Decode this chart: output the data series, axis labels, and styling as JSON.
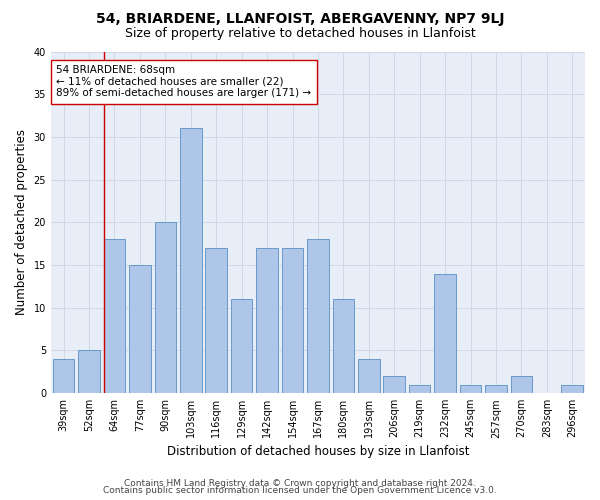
{
  "title": "54, BRIARDENE, LLANFOIST, ABERGAVENNY, NP7 9LJ",
  "subtitle": "Size of property relative to detached houses in Llanfoist",
  "xlabel": "Distribution of detached houses by size in Llanfoist",
  "ylabel": "Number of detached properties",
  "categories": [
    "39sqm",
    "52sqm",
    "64sqm",
    "77sqm",
    "90sqm",
    "103sqm",
    "116sqm",
    "129sqm",
    "142sqm",
    "154sqm",
    "167sqm",
    "180sqm",
    "193sqm",
    "206sqm",
    "219sqm",
    "232sqm",
    "245sqm",
    "257sqm",
    "270sqm",
    "283sqm",
    "296sqm"
  ],
  "values": [
    4,
    5,
    18,
    15,
    20,
    31,
    17,
    11,
    17,
    17,
    18,
    11,
    4,
    2,
    1,
    14,
    1,
    1,
    2,
    0,
    1
  ],
  "bar_color": "#aec6e8",
  "bar_edge_color": "#5a8fc2",
  "highlight_index": 2,
  "highlight_line_color": "#cc0000",
  "annotation_text": "54 BRIARDENE: 68sqm\n← 11% of detached houses are smaller (22)\n89% of semi-detached houses are larger (171) →",
  "annotation_box_color": "#ffffff",
  "annotation_border_color": "#cc0000",
  "ylim": [
    0,
    40
  ],
  "yticks": [
    0,
    5,
    10,
    15,
    20,
    25,
    30,
    35,
    40
  ],
  "grid_color": "#d0d8e8",
  "background_color": "#e8eef8",
  "footer_line1": "Contains HM Land Registry data © Crown copyright and database right 2024.",
  "footer_line2": "Contains public sector information licensed under the Open Government Licence v3.0.",
  "title_fontsize": 10,
  "subtitle_fontsize": 9,
  "xlabel_fontsize": 8.5,
  "ylabel_fontsize": 8.5,
  "tick_fontsize": 7,
  "annotation_fontsize": 7.5,
  "footer_fontsize": 6.5
}
